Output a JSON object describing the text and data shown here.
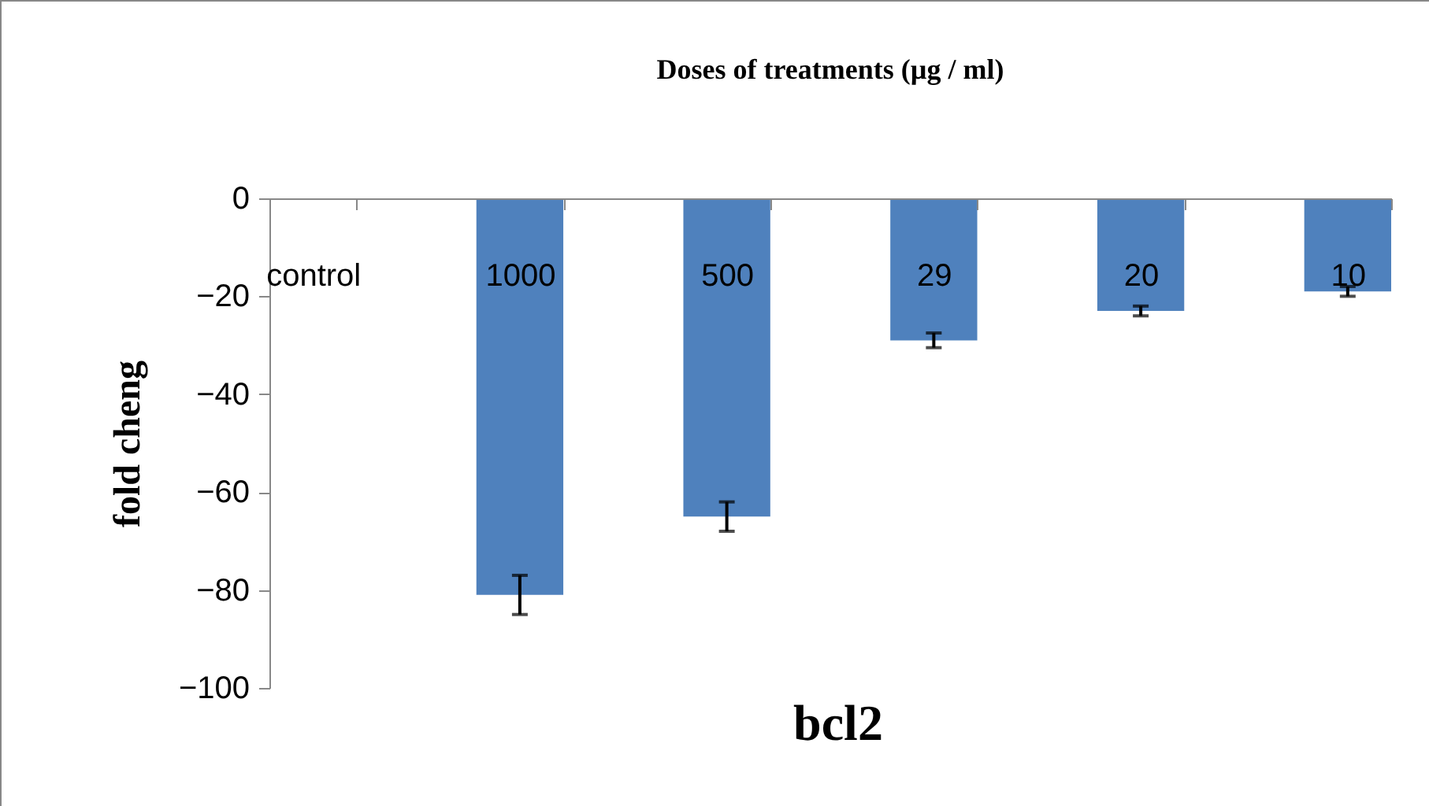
{
  "chart_data": {
    "type": "bar",
    "title": "Doses of treatments (µg / ml)",
    "xlabel": "bcl2",
    "ylabel": "fold cheng",
    "categories": [
      "control",
      "1000",
      "500",
      "29",
      "20",
      "10"
    ],
    "values": [
      0,
      -81,
      -65,
      -29,
      -23,
      -19
    ],
    "errors": [
      null,
      4,
      3,
      1.5,
      1,
      1
    ],
    "color": "#4f81bd",
    "ylim": [
      -100,
      0
    ],
    "yticks": [
      -100,
      -80,
      -60,
      -40,
      -20,
      0
    ],
    "grid": false
  }
}
